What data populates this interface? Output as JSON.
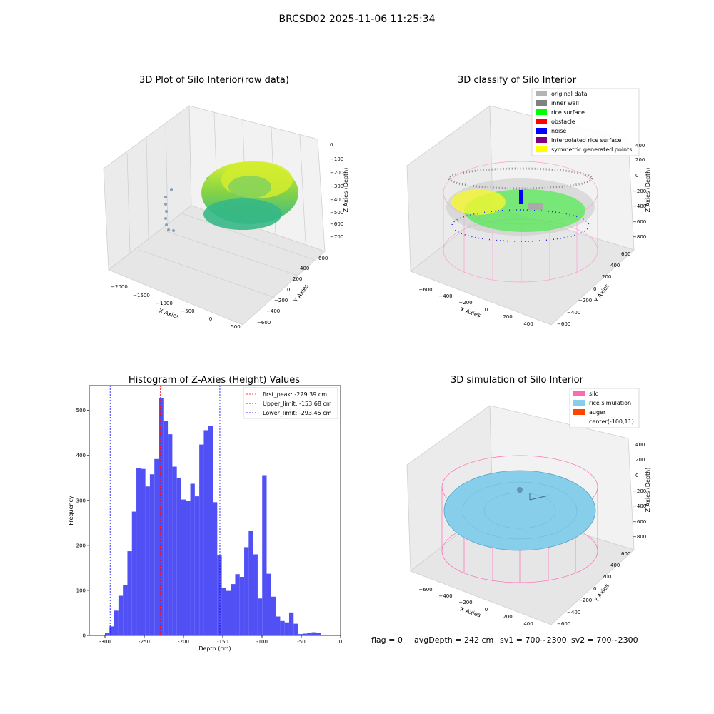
{
  "suptitle": "BRCSD02 2025-11-06 11:25:34",
  "footer": {
    "flag": "flag = 0",
    "avg": "avgDepth = 242 cm",
    "sv1": "sv1 = 700~2300",
    "sv2": "sv2 = 700~2300"
  },
  "chart_data": [
    {
      "type": "scatter",
      "title": "3D Plot of Silo Interior(row data)",
      "xlabel": "X Axies",
      "ylabel": "Y Axies",
      "zlabel": "Z Axies (Depth)",
      "x_ticks": [
        "−2000",
        "−1500",
        "−1000",
        "−500",
        "0",
        "500"
      ],
      "y_ticks": [
        "−600",
        "−400",
        "−200",
        "0",
        "200",
        "400",
        "600"
      ],
      "z_ticks": [
        "0",
        "−100",
        "−200",
        "−300",
        "−400",
        "−500",
        "−600",
        "−700"
      ]
    },
    {
      "type": "scatter",
      "title": "3D classify of Silo Interior",
      "xlabel": "X Axies",
      "ylabel": "Y Axies",
      "zlabel": "Z Axies (Depth)",
      "x_ticks": [
        "−600",
        "−400",
        "−200",
        "0",
        "200",
        "400"
      ],
      "y_ticks": [
        "−600",
        "−400",
        "−200",
        "0",
        "200",
        "400",
        "600"
      ],
      "z_ticks": [
        "400",
        "200",
        "0",
        "−200",
        "−400",
        "−600",
        "−800"
      ],
      "legend_position": "top-right",
      "legend": [
        {
          "label": "original data",
          "color": "#b4b4b4"
        },
        {
          "label": "inner wall",
          "color": "#808080"
        },
        {
          "label": "rice surface",
          "color": "#00ff00"
        },
        {
          "label": "obstacle",
          "color": "#ff0000"
        },
        {
          "label": "noise",
          "color": "#0000ff"
        },
        {
          "label": "interpolated rice surface",
          "color": "#800080"
        },
        {
          "label": "symmetric generated points",
          "color": "#ffff00"
        }
      ]
    },
    {
      "type": "bar",
      "title": "Histogram of Z-Axies (Height) Values",
      "xlabel": "Depth (cm)",
      "ylabel": "Frequency",
      "xlim": [
        -320,
        0
      ],
      "ylim": [
        0,
        555
      ],
      "x_ticks": [
        -300,
        -250,
        -200,
        -150,
        -100,
        -50,
        0
      ],
      "y_ticks": [
        0,
        100,
        200,
        300,
        400,
        500
      ],
      "bin_start": -300,
      "bin_width": 5.72,
      "bar_color": "#5050f5",
      "values": [
        6,
        20,
        55,
        88,
        112,
        187,
        275,
        372,
        370,
        331,
        358,
        392,
        528,
        476,
        447,
        375,
        350,
        302,
        299,
        337,
        309,
        424,
        456,
        465,
        296,
        179,
        106,
        99,
        114,
        136,
        130,
        196,
        232,
        180,
        82,
        356,
        137,
        86,
        42,
        32,
        29,
        51,
        26,
        3,
        4,
        6,
        7,
        6
      ],
      "legend_position": "top-right",
      "vlines": [
        {
          "label": "first_peak: -229.39 cm",
          "x": -229.39,
          "color": "#ff0000"
        },
        {
          "label": "Upper_limit: -153.68 cm",
          "x": -153.68,
          "color": "#0000ff"
        },
        {
          "label": "Lower_limit: -293.45 cm",
          "x": -293.45,
          "color": "#0000ff"
        }
      ]
    },
    {
      "type": "scatter",
      "title": "3D simulation of Silo Interior",
      "xlabel": "X Axies",
      "ylabel": "Y Axies",
      "zlabel": "Z Axies (Depth)",
      "x_ticks": [
        "−600",
        "−400",
        "−200",
        "0",
        "200",
        "400"
      ],
      "y_ticks": [
        "−600",
        "−400",
        "−200",
        "0",
        "200",
        "400",
        "600"
      ],
      "z_ticks": [
        "400",
        "200",
        "0",
        "−200",
        "−400",
        "−600",
        "−800"
      ],
      "legend_position": "top-right",
      "legend": [
        {
          "label": "silo",
          "color": "#ff69b4"
        },
        {
          "label": "rice simulation",
          "color": "#87ceeb"
        },
        {
          "label": "auger",
          "color": "#ff4500"
        },
        {
          "label": "center(-100,11)",
          "color": ""
        }
      ]
    }
  ]
}
